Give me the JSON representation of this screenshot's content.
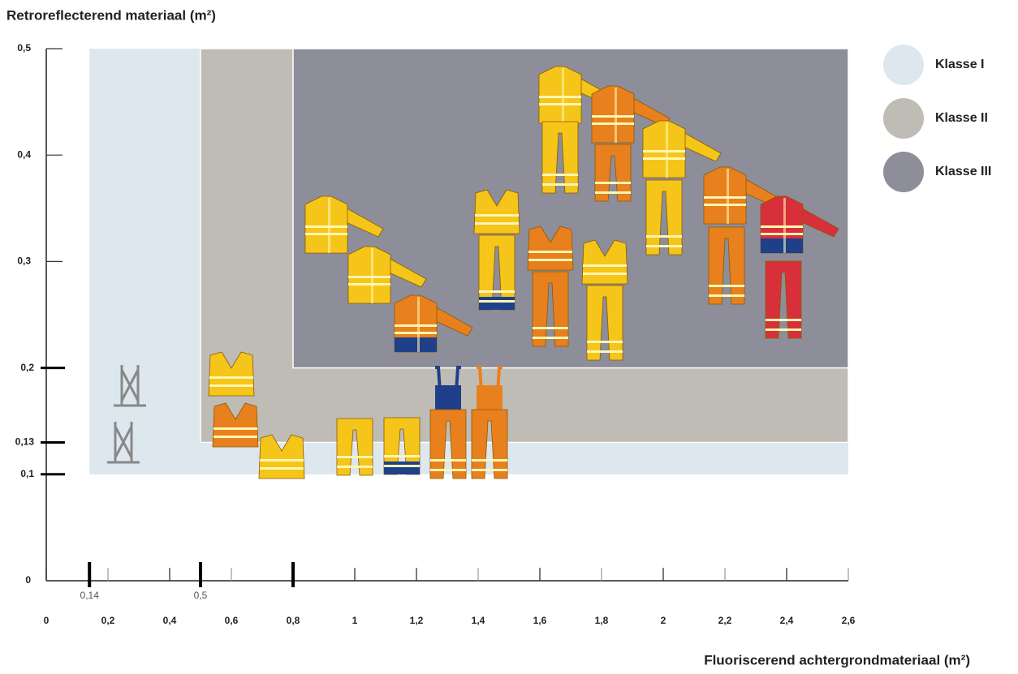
{
  "chart_data": {
    "type": "region",
    "y_label": "Retroreflecterend materiaal (m²)",
    "x_label": "Fluoriscerend achtergrondmateriaal (m²)",
    "series": [
      {
        "name": "Klasse I",
        "color": "#dde7ee",
        "x": [
          0.14,
          2.6
        ],
        "y": [
          0.1,
          0.5
        ]
      },
      {
        "name": "Klasse II",
        "color": "#bfbcb6",
        "x": [
          0.5,
          2.6
        ],
        "y": [
          0.13,
          0.5
        ]
      },
      {
        "name": "Klasse III",
        "color": "#8d8e99",
        "x": [
          0.8,
          2.6
        ],
        "y": [
          0.2,
          0.5
        ]
      }
    ],
    "xlim": [
      0,
      2.6
    ],
    "ylim": [
      0,
      0.5
    ],
    "xticks": [
      0,
      {
        "value": 0.14,
        "label": "0,14"
      },
      {
        "value": 0.2,
        "label": "0,2"
      },
      {
        "value": 0.4,
        "label": "0,4"
      },
      {
        "value": 0.5,
        "label": "0,5"
      },
      {
        "value": 0.6,
        "label": "0,6"
      },
      {
        "value": 0.8,
        "label": "0,8"
      },
      1,
      {
        "value": 1.2,
        "label": "1,2"
      },
      {
        "value": 1.4,
        "label": "1,4"
      },
      {
        "value": 1.6,
        "label": "1,6"
      },
      {
        "value": 1.8,
        "label": "1,8"
      },
      2,
      {
        "value": 2.2,
        "label": "2,2"
      },
      {
        "value": 2.4,
        "label": "2,4"
      },
      {
        "value": 2.6,
        "label": "2,6"
      }
    ],
    "yticks": [
      0,
      {
        "value": 0.1,
        "label": "0,1"
      },
      {
        "value": 0.13,
        "label": "0,13"
      },
      {
        "value": 0.2,
        "label": "0,2"
      },
      {
        "value": 0.3,
        "label": "0,3"
      },
      {
        "value": 0.4,
        "label": "0,4"
      },
      {
        "value": 0.5,
        "label": "0,5"
      }
    ]
  }
}
